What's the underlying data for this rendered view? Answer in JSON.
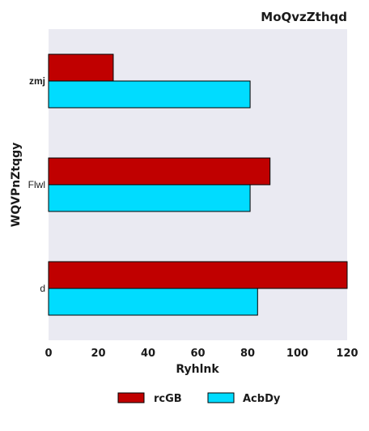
{
  "chart_data": {
    "type": "bar",
    "orientation": "horizontal",
    "title": "MoQvzZthqd",
    "xlabel": "Ryhlnk",
    "ylabel": "WQVPnZtqgy",
    "categories": [
      "zmj",
      "Flwl",
      "d"
    ],
    "series": [
      {
        "name": "rcGB",
        "values": [
          26,
          89,
          120
        ],
        "color": "#c00000"
      },
      {
        "name": "AcbDy",
        "values": [
          81,
          81,
          84
        ],
        "color": "#00dcff"
      }
    ],
    "xlim": [
      0,
      120
    ],
    "xticks": [
      "0",
      "20",
      "40",
      "60",
      "80",
      "100",
      "120"
    ],
    "grid": false,
    "background": "#eaeaf2",
    "legend_position": "bottom-center"
  }
}
